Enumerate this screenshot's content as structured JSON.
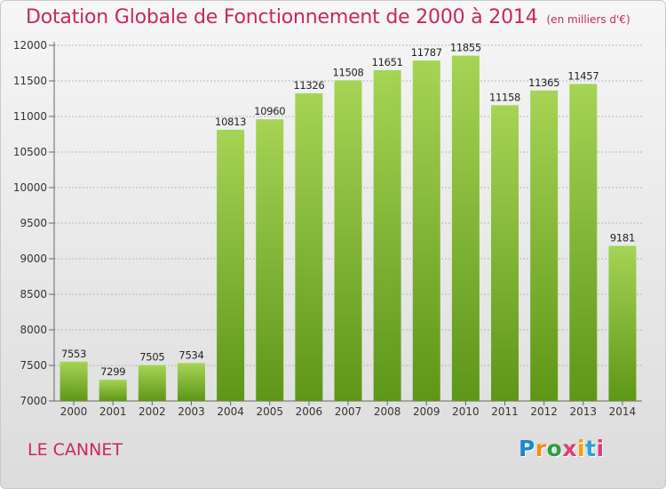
{
  "title": "Dotation Globale de Fonctionnement de 2000 à 2014",
  "subtitle": "(en milliers d'€)",
  "commune": "LE CANNET",
  "logo": {
    "text": "Proxiti",
    "colors": [
      "#1e88c8",
      "#f08c1e",
      "#2e9e3e",
      "#e23a7c",
      "#f0a000",
      "#2ea0d8",
      "#e23a7c"
    ]
  },
  "colors": {
    "title": "#c8285a",
    "bar_top": "#a6d455",
    "bar_bottom": "#5e9618",
    "grid": "#b5b5b5"
  },
  "chart_data": {
    "type": "bar",
    "categories": [
      "2000",
      "2001",
      "2002",
      "2003",
      "2004",
      "2005",
      "2006",
      "2007",
      "2008",
      "2009",
      "2010",
      "2011",
      "2012",
      "2013",
      "2014"
    ],
    "values": [
      7553,
      7299,
      7505,
      7534,
      10813,
      10960,
      11326,
      11508,
      11651,
      11787,
      11855,
      11158,
      11365,
      11457,
      9181
    ],
    "ylim": [
      7000,
      12000
    ],
    "yticks": [
      7000,
      7500,
      8000,
      8500,
      9000,
      9500,
      10000,
      10500,
      11000,
      11500,
      12000
    ],
    "grid": true,
    "data_labels": true
  }
}
